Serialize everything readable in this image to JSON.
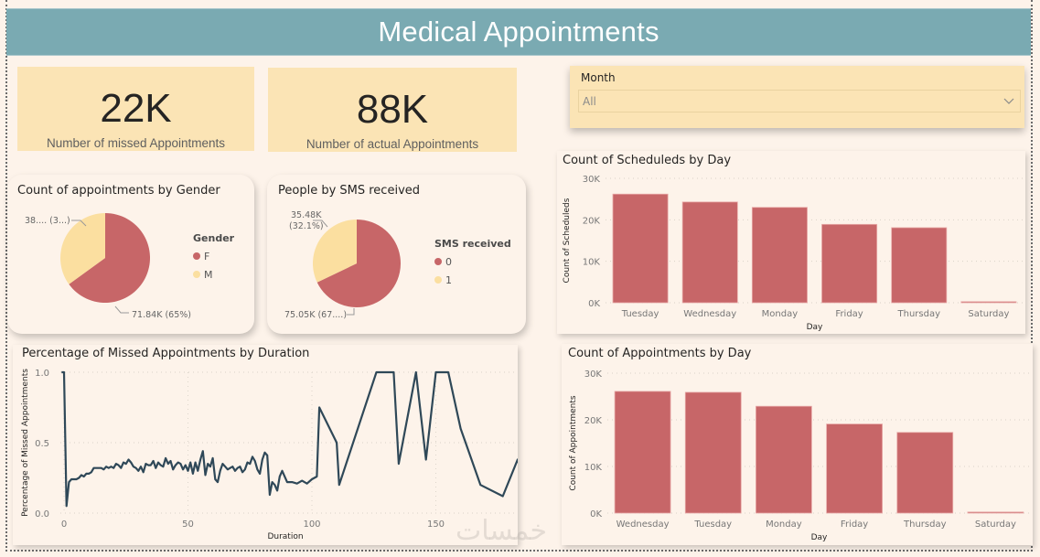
{
  "header": {
    "title": "Medical Appointments"
  },
  "kpis": [
    {
      "value": "22K",
      "label": "Number of missed Appointments"
    },
    {
      "value": "88K",
      "label": "Number of actual Appointments"
    }
  ],
  "slicer": {
    "label": "Month",
    "value": "All",
    "icon": "chevron-down-icon"
  },
  "watermark": "خمسات",
  "chart_data": [
    {
      "id": "gender_pie",
      "type": "pie",
      "title": "Count of appointments by Gender",
      "legend_title": "Gender",
      "legend_position": "right",
      "slices": [
        {
          "label": "F",
          "value": 71840,
          "percent": 65,
          "data_label": "71.84K (65%)",
          "color": "#c76668"
        },
        {
          "label": "M",
          "value": 38690,
          "percent": 35,
          "data_label": "38.... (3...)",
          "color": "#fbdfa0"
        }
      ]
    },
    {
      "id": "sms_pie",
      "type": "pie",
      "title": "People by SMS received",
      "legend_title": "SMS received",
      "legend_position": "right",
      "slices": [
        {
          "label": "0",
          "value": 75050,
          "percent": 67.9,
          "data_label": "75.05K (67....)",
          "color": "#c76668"
        },
        {
          "label": "1",
          "value": 35480,
          "percent": 32.1,
          "data_label_lines": [
            "35.48K",
            "(32.1%)"
          ],
          "color": "#fbdfa0"
        }
      ]
    },
    {
      "id": "scheduled_by_day",
      "type": "bar",
      "title": "Count of Scheduleds by Day",
      "xlabel": "Day",
      "ylabel": "Count of Scheduleds",
      "categories": [
        "Tuesday",
        "Wednesday",
        "Monday",
        "Friday",
        "Thursday",
        "Saturday"
      ],
      "values": [
        26200,
        24300,
        23000,
        18900,
        18100,
        40
      ],
      "ylim": [
        0,
        30000
      ],
      "yticks": [
        0,
        10000,
        20000,
        30000
      ],
      "ytick_labels": [
        "0K",
        "10K",
        "20K",
        "30K"
      ],
      "grid": true,
      "color": "#c76668"
    },
    {
      "id": "appointments_by_day",
      "type": "bar",
      "title": "Count of Appointments by Day",
      "xlabel": "Day",
      "ylabel": "Count of Appointments",
      "categories": [
        "Wednesday",
        "Tuesday",
        "Monday",
        "Friday",
        "Thursday",
        "Saturday"
      ],
      "values": [
        26100,
        25900,
        22900,
        19100,
        17300,
        40
      ],
      "ylim": [
        0,
        30000
      ],
      "yticks": [
        0,
        10000,
        20000,
        30000
      ],
      "ytick_labels": [
        "0K",
        "10K",
        "20K",
        "30K"
      ],
      "grid": true,
      "color": "#c76668"
    },
    {
      "id": "missed_by_duration",
      "type": "line",
      "title": "Percentage of Missed Appointments by Duration",
      "xlabel": "Duration",
      "ylabel": "Percentage of Missed Appointments",
      "xlim": [
        0,
        186
      ],
      "ylim": [
        0,
        1
      ],
      "xticks": [
        0,
        50,
        100,
        150
      ],
      "yticks": [
        0,
        0.5,
        1.0
      ],
      "ytick_labels": [
        "0.0",
        "0.5",
        "1.0"
      ],
      "grid": true,
      "color": "#2f4858",
      "x": [
        -1,
        0,
        1,
        2,
        3,
        4,
        5,
        6,
        7,
        8,
        9,
        10,
        11,
        12,
        13,
        14,
        15,
        16,
        17,
        18,
        19,
        20,
        21,
        22,
        23,
        24,
        25,
        26,
        27,
        28,
        29,
        30,
        31,
        32,
        33,
        34,
        35,
        36,
        37,
        38,
        39,
        40,
        41,
        42,
        43,
        44,
        45,
        46,
        47,
        48,
        49,
        50,
        51,
        52,
        53,
        54,
        55,
        56,
        57,
        58,
        59,
        60,
        61,
        62,
        63,
        64,
        65,
        66,
        67,
        68,
        69,
        70,
        71,
        72,
        73,
        74,
        75,
        76,
        77,
        78,
        79,
        80,
        81,
        82,
        83,
        84,
        85,
        86,
        87,
        88,
        90,
        92,
        94,
        96,
        98,
        100,
        102,
        103,
        110,
        111,
        126,
        133,
        135,
        142,
        146,
        150,
        155,
        160,
        168,
        177,
        183,
        186
      ],
      "y": [
        1.0,
        1.0,
        0.05,
        0.22,
        0.24,
        0.24,
        0.24,
        0.25,
        0.27,
        0.26,
        0.28,
        0.28,
        0.29,
        0.32,
        0.32,
        0.32,
        0.32,
        0.31,
        0.33,
        0.32,
        0.33,
        0.32,
        0.35,
        0.34,
        0.32,
        0.36,
        0.35,
        0.38,
        0.36,
        0.33,
        0.32,
        0.3,
        0.33,
        0.29,
        0.35,
        0.34,
        0.34,
        0.37,
        0.32,
        0.36,
        0.34,
        0.33,
        0.39,
        0.35,
        0.37,
        0.31,
        0.34,
        0.36,
        0.35,
        0.31,
        0.34,
        0.3,
        0.36,
        0.28,
        0.36,
        0.3,
        0.38,
        0.44,
        0.27,
        0.35,
        0.33,
        0.39,
        0.24,
        0.22,
        0.3,
        0.35,
        0.33,
        0.31,
        0.32,
        0.33,
        0.3,
        0.32,
        0.33,
        0.29,
        0.31,
        0.36,
        0.35,
        0.4,
        0.37,
        0.31,
        0.28,
        0.38,
        0.43,
        0.41,
        0.13,
        0.22,
        0.2,
        0.16,
        0.26,
        0.3,
        0.22,
        0.22,
        0.21,
        0.23,
        0.21,
        0.24,
        0.26,
        0.75,
        0.5,
        0.2,
        1.0,
        1.0,
        0.35,
        1.0,
        0.38,
        1.0,
        1.0,
        0.6,
        0.2,
        0.12,
        0.38,
        0.2
      ]
    }
  ]
}
